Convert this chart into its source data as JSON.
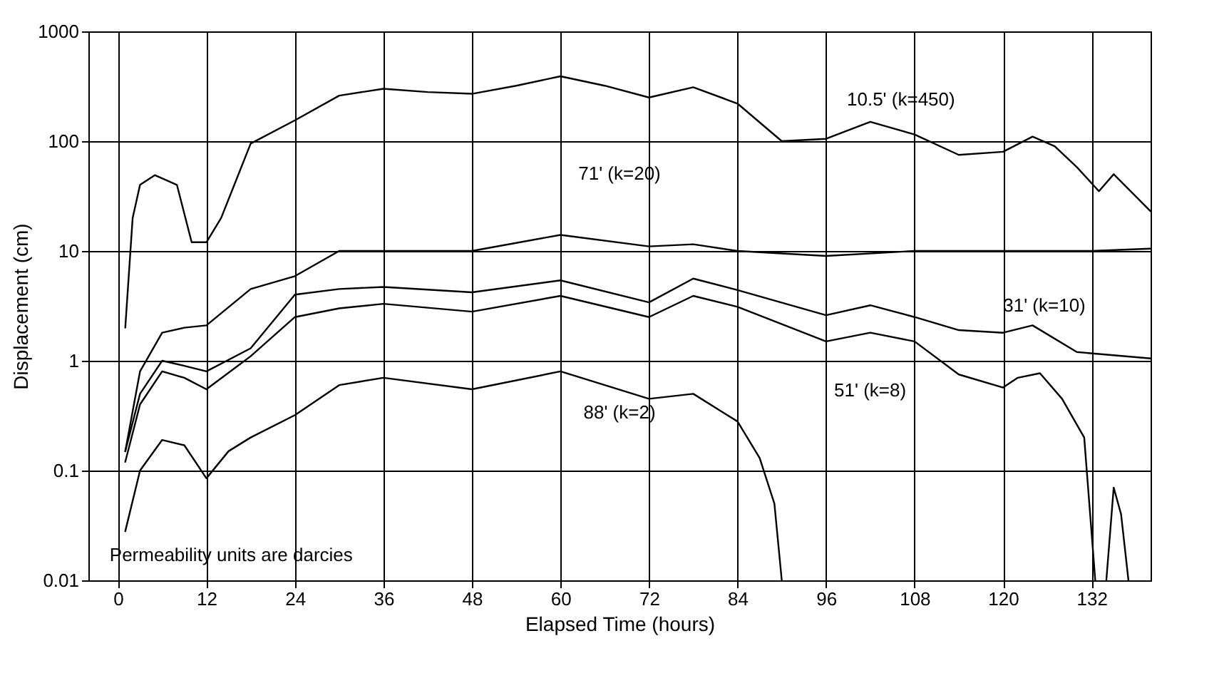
{
  "chart_data": {
    "type": "line",
    "xlabel": "Elapsed Time (hours)",
    "ylabel": "Displacement (cm)",
    "xlim": [
      -4,
      140
    ],
    "xticks": [
      0,
      12,
      24,
      36,
      48,
      60,
      72,
      84,
      96,
      108,
      120,
      132
    ],
    "ylim": [
      0.01,
      1000
    ],
    "yticks": [
      0.01,
      0.1,
      1,
      10,
      100,
      1000
    ],
    "log": "y",
    "grid": true,
    "legend": false,
    "marker": "none",
    "line_style": "solid",
    "series": [
      {
        "color": "#000000",
        "x": [
          1,
          2,
          3,
          5,
          8,
          10,
          12,
          14,
          18,
          24,
          30,
          36,
          42,
          48,
          54,
          60,
          66,
          72,
          78,
          84,
          90,
          96,
          102,
          108,
          114,
          120,
          124,
          127,
          130,
          133,
          135,
          140
        ],
        "values": [
          2,
          20,
          40,
          49,
          40,
          12,
          12,
          20,
          95,
          155,
          260,
          300,
          280,
          270,
          320,
          390,
          320,
          250,
          310,
          220,
          100,
          105,
          150,
          115,
          75,
          80,
          110,
          90,
          58,
          35,
          50,
          23
        ]
      },
      {
        "color": "#000000",
        "x": [
          1,
          3,
          6,
          9,
          12,
          18,
          24,
          30,
          36,
          48,
          60,
          72,
          78,
          84,
          96,
          108,
          120,
          132,
          140
        ],
        "values": [
          0.15,
          0.8,
          1.8,
          2,
          2.1,
          4.5,
          5.9,
          10,
          10,
          10,
          14,
          11,
          11.5,
          10,
          9,
          10,
          10,
          10,
          10.5
        ]
      },
      {
        "color": "#000000",
        "x": [
          1,
          3,
          6,
          9,
          12,
          18,
          24,
          30,
          36,
          48,
          60,
          72,
          78,
          84,
          96,
          102,
          108,
          114,
          120,
          124,
          130,
          140
        ],
        "values": [
          0.15,
          0.5,
          1,
          0.9,
          0.8,
          1.3,
          4,
          4.5,
          4.7,
          4.2,
          5.4,
          3.4,
          5.6,
          4.4,
          2.6,
          3.2,
          2.5,
          1.9,
          1.8,
          2.1,
          1.2,
          1.05
        ]
      },
      {
        "color": "#000000",
        "x": [
          1,
          3,
          6,
          9,
          12,
          18,
          24,
          30,
          36,
          48,
          60,
          72,
          78,
          84,
          96,
          102,
          108,
          114,
          120,
          122,
          125,
          128,
          131,
          132.5,
          133.5,
          134,
          135,
          136,
          137
        ],
        "values": [
          0.12,
          0.4,
          0.8,
          0.7,
          0.55,
          1.1,
          2.5,
          3,
          3.3,
          2.8,
          3.9,
          2.5,
          3.9,
          3.1,
          1.5,
          1.8,
          1.5,
          0.75,
          0.57,
          0.7,
          0.77,
          0.45,
          0.2,
          0.01,
          null,
          0.01,
          0.07,
          0.04,
          0.01
        ]
      },
      {
        "color": "#000000",
        "x": [
          1,
          3,
          6,
          9,
          12,
          15,
          18,
          24,
          30,
          36,
          48,
          60,
          72,
          78,
          84,
          87,
          89,
          90
        ],
        "values": [
          0.028,
          0.1,
          0.19,
          0.17,
          0.085,
          0.15,
          0.2,
          0.32,
          0.6,
          0.7,
          0.55,
          0.8,
          0.45,
          0.5,
          0.28,
          0.13,
          0.05,
          0.01
        ]
      }
    ],
    "annotations": [
      "10.5' (k=450)",
      "71' (k=20)",
      "31' (k=10)",
      "51' (k=8)",
      "88' (k=2)",
      "Permeability units are darcies"
    ]
  }
}
